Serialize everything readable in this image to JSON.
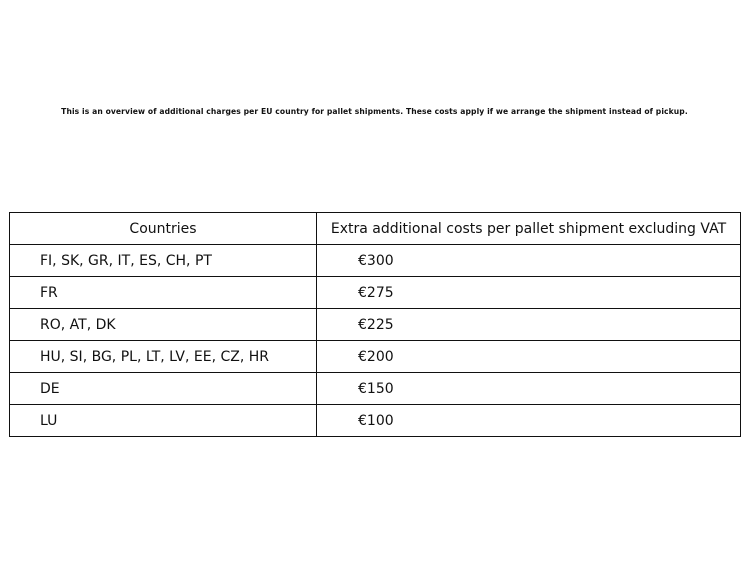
{
  "intro": "This is an overview of additional charges per EU country for pallet shipments. These costs apply if we arrange the shipment instead of pickup.",
  "table": {
    "headers": [
      "Countries",
      "Extra additional costs per pallet shipment excluding VAT"
    ],
    "rows": [
      {
        "countries": "FI, SK, GR, IT, ES, CH, PT",
        "cost": "€300"
      },
      {
        "countries": "FR",
        "cost": "€275"
      },
      {
        "countries": "RO, AT, DK",
        "cost": "€225"
      },
      {
        "countries": "HU, SI, BG, PL, LT, LV, EE, CZ, HR",
        "cost": "€200"
      },
      {
        "countries": "DE",
        "cost": "€150"
      },
      {
        "countries": "LU",
        "cost": "€100"
      }
    ]
  }
}
